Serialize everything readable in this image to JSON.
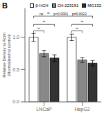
{
  "chart_data": {
    "type": "bar",
    "title": "B",
    "categories": [
      "LNCaP",
      "HepG2"
    ],
    "series": [
      {
        "name": "β-HCH",
        "color": "white",
        "values": [
          1.0,
          1.0
        ],
        "errors": [
          0.06,
          0.05
        ]
      },
      {
        "name": "CH-223191",
        "color": "#888888",
        "values": [
          0.75,
          0.65
        ],
        "errors": [
          0.05,
          0.04
        ]
      },
      {
        "name": "MG132",
        "color": "#333333",
        "values": [
          0.68,
          0.6
        ],
        "errors": [
          0.05,
          0.04
        ]
      }
    ],
    "ylabel": "Relative Density to Actin\n(Normalized to control)",
    "ylim": [
      0,
      1.45
    ],
    "yticks": [
      {
        "value": 0,
        "label": "0.0"
      },
      0.5,
      {
        "value": 1.0,
        "label": "1.0"
      }
    ],
    "grid": false,
    "legend": "upper right",
    "annotations": [
      {
        "text": "**",
        "from": {
          "group": "LNCaP",
          "series": "β-HCH"
        },
        "to": {
          "group": "LNCaP",
          "series": "CH-223191"
        },
        "y": 1.1
      },
      {
        "text": "**",
        "from": {
          "group": "LNCaP",
          "series": "β-HCH"
        },
        "to": {
          "group": "LNCaP",
          "series": "MG132"
        },
        "y": 1.2
      },
      {
        "text": "**",
        "from": {
          "group": "HepG2",
          "series": "β-HCH"
        },
        "to": {
          "group": "HepG2",
          "series": "CH-223191"
        },
        "y": 1.1
      },
      {
        "text": "**",
        "from": {
          "group": "HepG2",
          "series": "β-HCH"
        },
        "to": {
          "group": "HepG2",
          "series": "MG132"
        },
        "y": 1.2
      },
      {
        "text": "ns    **    p<0.0001    p=0.0022",
        "from": {
          "group": "LNCaP",
          "series": "β-HCH"
        },
        "to": {
          "group": "HepG2",
          "series": "MG132"
        },
        "y": 1.33
      }
    ]
  }
}
